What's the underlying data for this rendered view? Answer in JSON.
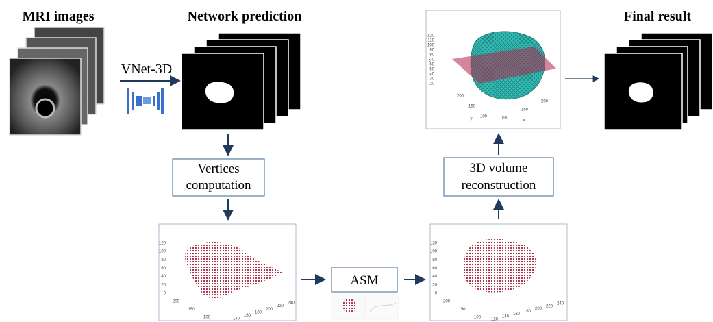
{
  "headings": {
    "mri": "MRI images",
    "network": "Network prediction",
    "final": "Final result"
  },
  "labels": {
    "vnet": "VNet-3D",
    "asm": "ASM"
  },
  "boxes": {
    "vertices": [
      "Vertices",
      "computation"
    ],
    "reconstruction": [
      "3D volume",
      "reconstruction"
    ]
  },
  "plots": [
    {
      "z_ticks": [
        120,
        100,
        80,
        60,
        40,
        20,
        0
      ],
      "y_ticks": [
        200,
        150,
        100
      ],
      "x_ticks": [
        140,
        160,
        180,
        200,
        220,
        240
      ]
    },
    {
      "z_ticks": [
        120,
        100,
        80,
        60,
        40,
        20,
        0
      ],
      "y_ticks": [
        200,
        150,
        100
      ],
      "x_ticks": [
        120,
        140,
        160,
        180,
        200,
        220,
        240
      ]
    },
    {
      "z_ticks": [
        120,
        110,
        100,
        90,
        80,
        70,
        60,
        50,
        40,
        30,
        20
      ],
      "y_ticks": [
        200,
        150,
        100
      ],
      "x_ticks": [
        100,
        150,
        200
      ],
      "axis_names": [
        "z",
        "y",
        "x"
      ]
    }
  ]
}
